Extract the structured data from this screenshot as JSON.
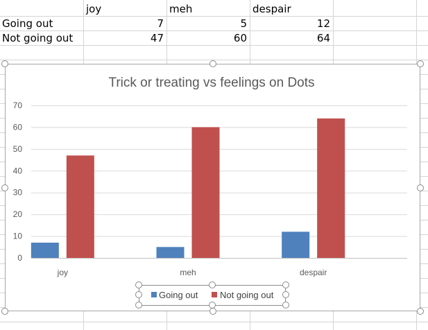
{
  "table": {
    "headers": [
      "joy",
      "meh",
      "despair"
    ],
    "rows": [
      {
        "label": "Going out",
        "values": [
          "7",
          "5",
          "12"
        ]
      },
      {
        "label": "Not going out",
        "values": [
          "47",
          "60",
          "64"
        ]
      }
    ]
  },
  "chart_data": {
    "type": "bar",
    "title": "Trick or treating vs feelings on Dots",
    "categories": [
      "joy",
      "meh",
      "despair"
    ],
    "series": [
      {
        "name": "Going out",
        "values": [
          7,
          5,
          12
        ],
        "color": "#4f81bd"
      },
      {
        "name": "Not going out",
        "values": [
          47,
          60,
          64
        ],
        "color": "#c0504d"
      }
    ],
    "ylim": [
      0,
      70
    ],
    "yticks": [
      "0",
      "10",
      "20",
      "30",
      "40",
      "50",
      "60",
      "70"
    ],
    "grid": true,
    "legend": "bottom"
  }
}
